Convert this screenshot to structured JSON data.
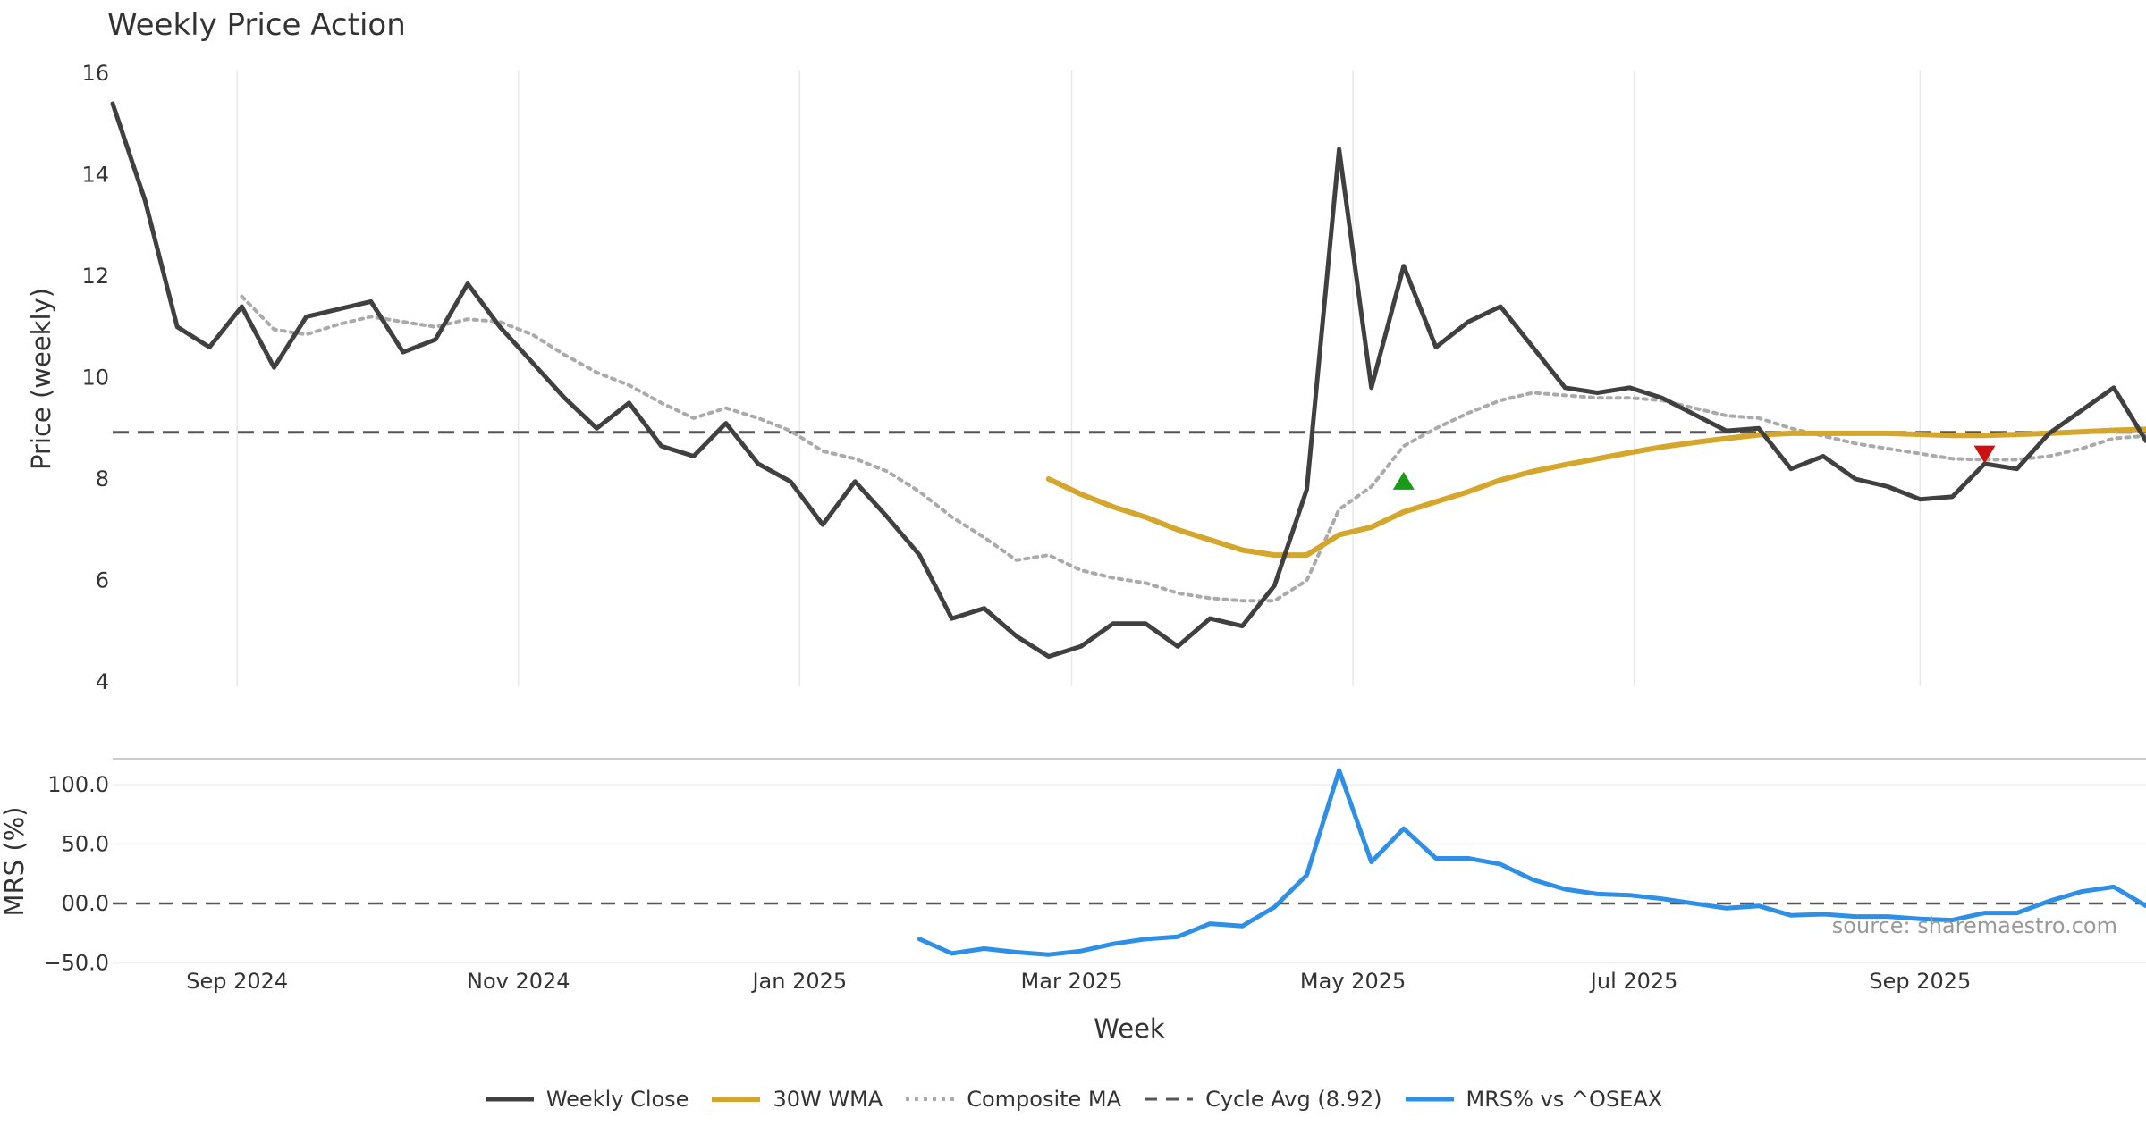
{
  "chart_data": {
    "type": "line",
    "title": "Weekly Price Action",
    "source": "source: sharemaestro.com",
    "x_axis": {
      "label": "Week",
      "range": [
        "2024-08-05",
        "2025-10-20"
      ],
      "ticks": [
        {
          "date": "2024-09-01",
          "label": "Sep 2024"
        },
        {
          "date": "2024-11-01",
          "label": "Nov 2024"
        },
        {
          "date": "2025-01-01",
          "label": "Jan 2025"
        },
        {
          "date": "2025-03-01",
          "label": "Mar 2025"
        },
        {
          "date": "2025-05-01",
          "label": "May 2025"
        },
        {
          "date": "2025-07-01",
          "label": "Jul 2025"
        },
        {
          "date": "2025-09-01",
          "label": "Sep 2025"
        }
      ]
    },
    "price_panel": {
      "ylabel": "Price (weekly)",
      "ylim": [
        4,
        16
      ],
      "yticks": [
        4,
        6,
        8,
        10,
        12,
        14,
        16
      ],
      "vertical_grid": true
    },
    "mrs_panel": {
      "ylabel": "MRS (%)",
      "ylim": [
        -50,
        120
      ],
      "yticks": [
        -50,
        0,
        50,
        100
      ],
      "ytick_labels": [
        "−50.0",
        "00.0",
        "50.0",
        "100.0"
      ]
    },
    "weeks": [
      "2024-08-05",
      "2024-08-12",
      "2024-08-19",
      "2024-08-26",
      "2024-09-02",
      "2024-09-09",
      "2024-09-16",
      "2024-09-23",
      "2024-09-30",
      "2024-10-07",
      "2024-10-14",
      "2024-10-21",
      "2024-10-28",
      "2024-11-04",
      "2024-11-11",
      "2024-11-18",
      "2024-11-25",
      "2024-12-02",
      "2024-12-09",
      "2024-12-16",
      "2024-12-23",
      "2024-12-30",
      "2025-01-06",
      "2025-01-13",
      "2025-01-20",
      "2025-01-27",
      "2025-02-03",
      "2025-02-10",
      "2025-02-17",
      "2025-02-24",
      "2025-03-03",
      "2025-03-10",
      "2025-03-17",
      "2025-03-24",
      "2025-03-31",
      "2025-04-07",
      "2025-04-14",
      "2025-04-21",
      "2025-04-28",
      "2025-05-05",
      "2025-05-12",
      "2025-05-19",
      "2025-05-26",
      "2025-06-02",
      "2025-06-09",
      "2025-06-16",
      "2025-06-23",
      "2025-06-30",
      "2025-07-07",
      "2025-07-14",
      "2025-07-21",
      "2025-07-28",
      "2025-08-04",
      "2025-08-11",
      "2025-08-18",
      "2025-08-25",
      "2025-09-01",
      "2025-09-08",
      "2025-09-15",
      "2025-09-22",
      "2025-09-29",
      "2025-10-06",
      "2025-10-13",
      "2025-10-20"
    ],
    "series": [
      {
        "name": "Weekly Close",
        "color": "#404040",
        "style": "solid",
        "values": [
          15.4,
          13.5,
          11.0,
          10.6,
          11.4,
          10.2,
          11.2,
          11.35,
          11.5,
          10.5,
          10.75,
          11.85,
          11.0,
          10.3,
          9.6,
          9.0,
          9.5,
          8.65,
          8.45,
          9.1,
          8.3,
          7.95,
          7.1,
          7.95,
          7.25,
          6.5,
          5.25,
          5.45,
          4.9,
          4.5,
          4.7,
          5.15,
          5.15,
          4.7,
          5.25,
          5.1,
          5.9,
          7.8,
          14.5,
          9.8,
          12.2,
          10.6,
          11.1,
          11.4,
          null,
          9.8,
          9.7,
          9.8,
          9.6,
          null,
          8.95,
          9.0,
          8.2,
          8.45,
          8.0,
          7.85,
          7.6,
          7.65,
          8.3,
          8.2,
          8.9,
          null,
          9.8,
          8.75
        ]
      },
      {
        "name": "30W WMA",
        "color": "#d4a72c",
        "style": "solid",
        "values": [
          null,
          null,
          null,
          null,
          null,
          null,
          null,
          null,
          null,
          null,
          null,
          null,
          null,
          null,
          null,
          null,
          null,
          null,
          null,
          null,
          null,
          null,
          null,
          null,
          null,
          null,
          null,
          null,
          null,
          8.0,
          7.7,
          7.45,
          7.25,
          7.0,
          6.8,
          6.6,
          6.5,
          6.5,
          6.9,
          7.05,
          7.35,
          7.55,
          7.75,
          7.98,
          8.15,
          8.28,
          8.4,
          8.52,
          8.63,
          8.72,
          8.8,
          8.87,
          8.9,
          8.9,
          8.9,
          8.9,
          8.88,
          8.86,
          8.86,
          8.88,
          8.9,
          8.93,
          8.96,
          8.98
        ]
      },
      {
        "name": "Composite MA",
        "color": "#aaaaaa",
        "style": "dotted",
        "values": [
          null,
          null,
          null,
          null,
          11.6,
          10.95,
          10.85,
          11.05,
          11.2,
          11.1,
          11.0,
          11.15,
          11.1,
          10.85,
          10.45,
          10.1,
          9.85,
          9.5,
          9.2,
          9.4,
          9.2,
          8.95,
          8.55,
          8.4,
          8.15,
          7.75,
          7.25,
          6.85,
          6.4,
          6.5,
          6.2,
          6.05,
          5.95,
          5.75,
          5.65,
          5.6,
          5.6,
          6.0,
          7.4,
          7.85,
          8.65,
          9.0,
          9.3,
          9.55,
          9.7,
          9.65,
          9.6,
          9.6,
          9.55,
          9.4,
          9.25,
          9.2,
          9.0,
          8.85,
          8.7,
          8.6,
          8.5,
          8.4,
          8.38,
          8.38,
          8.45,
          8.6,
          8.8,
          8.85
        ]
      },
      {
        "name": "Cycle Avg (8.92)",
        "color": "#555555",
        "style": "dashed",
        "constant": 8.92
      },
      {
        "name": "MRS% vs ^OSEAX",
        "color": "#2e8fe6",
        "style": "solid",
        "panel": "mrs",
        "values": [
          null,
          null,
          null,
          null,
          null,
          null,
          null,
          null,
          null,
          null,
          null,
          null,
          null,
          null,
          null,
          null,
          null,
          null,
          null,
          null,
          null,
          null,
          null,
          null,
          null,
          -30,
          -42,
          -38,
          -41,
          -43,
          -40,
          -34,
          -30,
          -28,
          -17,
          -19,
          -3,
          24,
          112,
          35,
          63,
          38,
          38,
          33,
          20,
          12,
          8,
          7,
          4,
          0,
          -4,
          -2,
          -10,
          -9,
          -11,
          -11,
          -13,
          -14,
          -8,
          -8,
          2,
          10,
          14,
          -2
        ]
      }
    ],
    "markers": [
      {
        "type": "buy",
        "shape": "triangle-up",
        "color": "#1a9a1a",
        "x": "2025-05-12",
        "y": 7.95
      },
      {
        "type": "sell",
        "shape": "triangle-down",
        "color": "#cc1111",
        "x": "2025-09-15",
        "y": 8.5
      }
    ],
    "legend": {
      "position": "bottom-center"
    }
  }
}
